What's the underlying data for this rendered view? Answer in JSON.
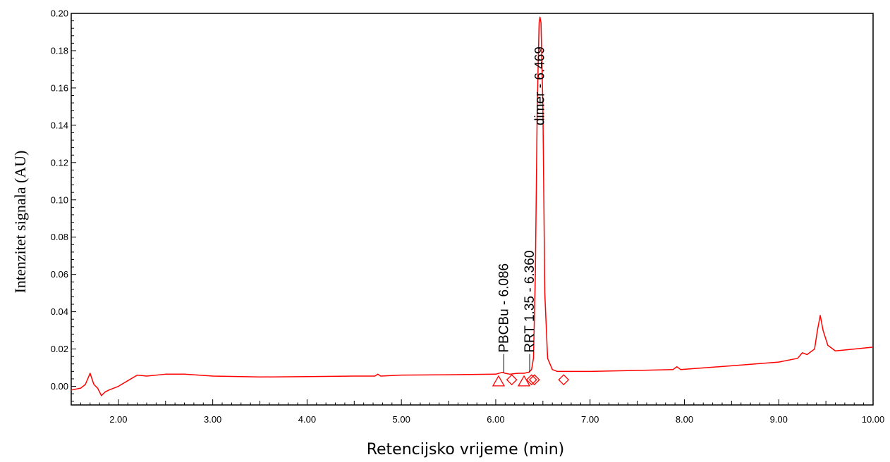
{
  "chart_data": {
    "type": "line",
    "title": "",
    "xlabel": "Retencijsko vrijeme (min)",
    "ylabel": "Intenzitet signala (AU)",
    "xlim": [
      1.5,
      10.0
    ],
    "ylim": [
      -0.01,
      0.2
    ],
    "x_ticks": [
      "2.00",
      "3.00",
      "4.00",
      "5.00",
      "6.00",
      "7.00",
      "8.00",
      "9.00",
      "10.00"
    ],
    "y_ticks": [
      "0.00",
      "0.02",
      "0.04",
      "0.06",
      "0.08",
      "0.10",
      "0.12",
      "0.14",
      "0.16",
      "0.18",
      "0.20"
    ],
    "grid": false,
    "line_color": "#ff0000",
    "series": [
      {
        "x": [
          1.5,
          1.6,
          1.65,
          1.7,
          1.74,
          1.78,
          1.82,
          1.86,
          1.9,
          2.0,
          2.1,
          2.2,
          2.3,
          2.5,
          2.7,
          3.0,
          3.5,
          4.0,
          4.5,
          4.72,
          4.75,
          4.78,
          5.0,
          5.5,
          6.0,
          6.07,
          6.1,
          6.15,
          6.2,
          6.25,
          6.3,
          6.35,
          6.36,
          6.38,
          6.4,
          6.42,
          6.44,
          6.46,
          6.469,
          6.48,
          6.5,
          6.52,
          6.55,
          6.6,
          6.65,
          6.7,
          7.0,
          7.5,
          7.88,
          7.92,
          7.96,
          8.5,
          9.0,
          9.2,
          9.25,
          9.3,
          9.38,
          9.41,
          9.44,
          9.47,
          9.52,
          9.6,
          9.8,
          10.0
        ],
        "y": [
          -0.002,
          -0.001,
          0.001,
          0.007,
          0.001,
          -0.001,
          -0.005,
          -0.003,
          -0.002,
          0.0,
          0.003,
          0.006,
          0.0055,
          0.0065,
          0.0065,
          0.0055,
          0.005,
          0.0052,
          0.0055,
          0.0055,
          0.0065,
          0.0055,
          0.006,
          0.0062,
          0.0065,
          0.0075,
          0.007,
          0.0065,
          0.0068,
          0.007,
          0.007,
          0.0075,
          0.008,
          0.009,
          0.015,
          0.06,
          0.15,
          0.195,
          0.198,
          0.195,
          0.15,
          0.05,
          0.015,
          0.009,
          0.008,
          0.008,
          0.008,
          0.0085,
          0.009,
          0.0105,
          0.009,
          0.011,
          0.013,
          0.015,
          0.018,
          0.017,
          0.02,
          0.03,
          0.038,
          0.03,
          0.022,
          0.019,
          0.02,
          0.021
        ]
      }
    ],
    "peaks": [
      {
        "label": "PBCBu - 6.086",
        "x": 6.086,
        "y": 0.0075
      },
      {
        "label": "RRT 1.35 - 6.360",
        "x": 6.36,
        "y": 0.0075
      },
      {
        "label": "dimer - 6.469",
        "x": 6.469,
        "y": 0.198
      }
    ],
    "markers": [
      {
        "shape": "triangle",
        "x": 6.03,
        "y": 0.0025
      },
      {
        "shape": "diamond",
        "x": 6.17,
        "y": 0.0035
      },
      {
        "shape": "triangle",
        "x": 6.3,
        "y": 0.0025
      },
      {
        "shape": "diamond",
        "x": 6.38,
        "y": 0.0035
      },
      {
        "shape": "diamond",
        "x": 6.41,
        "y": 0.0035
      },
      {
        "shape": "diamond",
        "x": 6.72,
        "y": 0.0035
      }
    ]
  }
}
